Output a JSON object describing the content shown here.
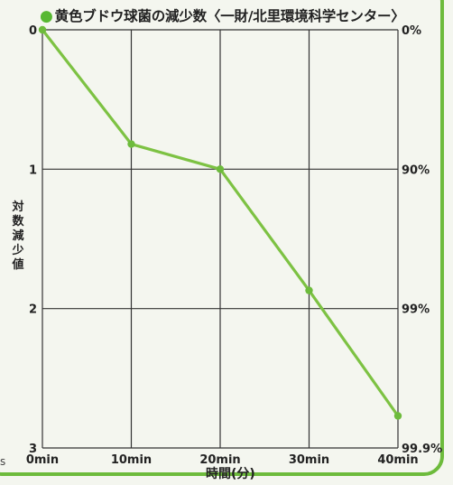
{
  "title": "黄色ブドウ球菌の減少数〈一財/北里環境科学センター〉",
  "title_marker": "●",
  "edge_fragment": "s",
  "colors": {
    "line": "#7dc243",
    "marker": "#6dbb3c",
    "grid": "#333333",
    "frame": "#6dbb3c"
  },
  "chart_data": {
    "type": "line",
    "title": "黄色ブドウ球菌の減少数〈一財/北里環境科学センター〉",
    "xlabel": "時間(分)",
    "ylabel": "対数減少値",
    "x": [
      0,
      10,
      20,
      30,
      40
    ],
    "categories": [
      "0min",
      "10min",
      "20min",
      "30min",
      "40min"
    ],
    "series": [
      {
        "values": [
          0,
          0.82,
          1.0,
          1.87,
          2.77
        ]
      }
    ],
    "ylim": [
      0,
      3
    ],
    "y_inverted": true,
    "y_ticks": [
      "0",
      "1",
      "2",
      "3"
    ],
    "y2_ticks": [
      "0%",
      "90%",
      "99%",
      "99.9%"
    ],
    "grid": true
  }
}
